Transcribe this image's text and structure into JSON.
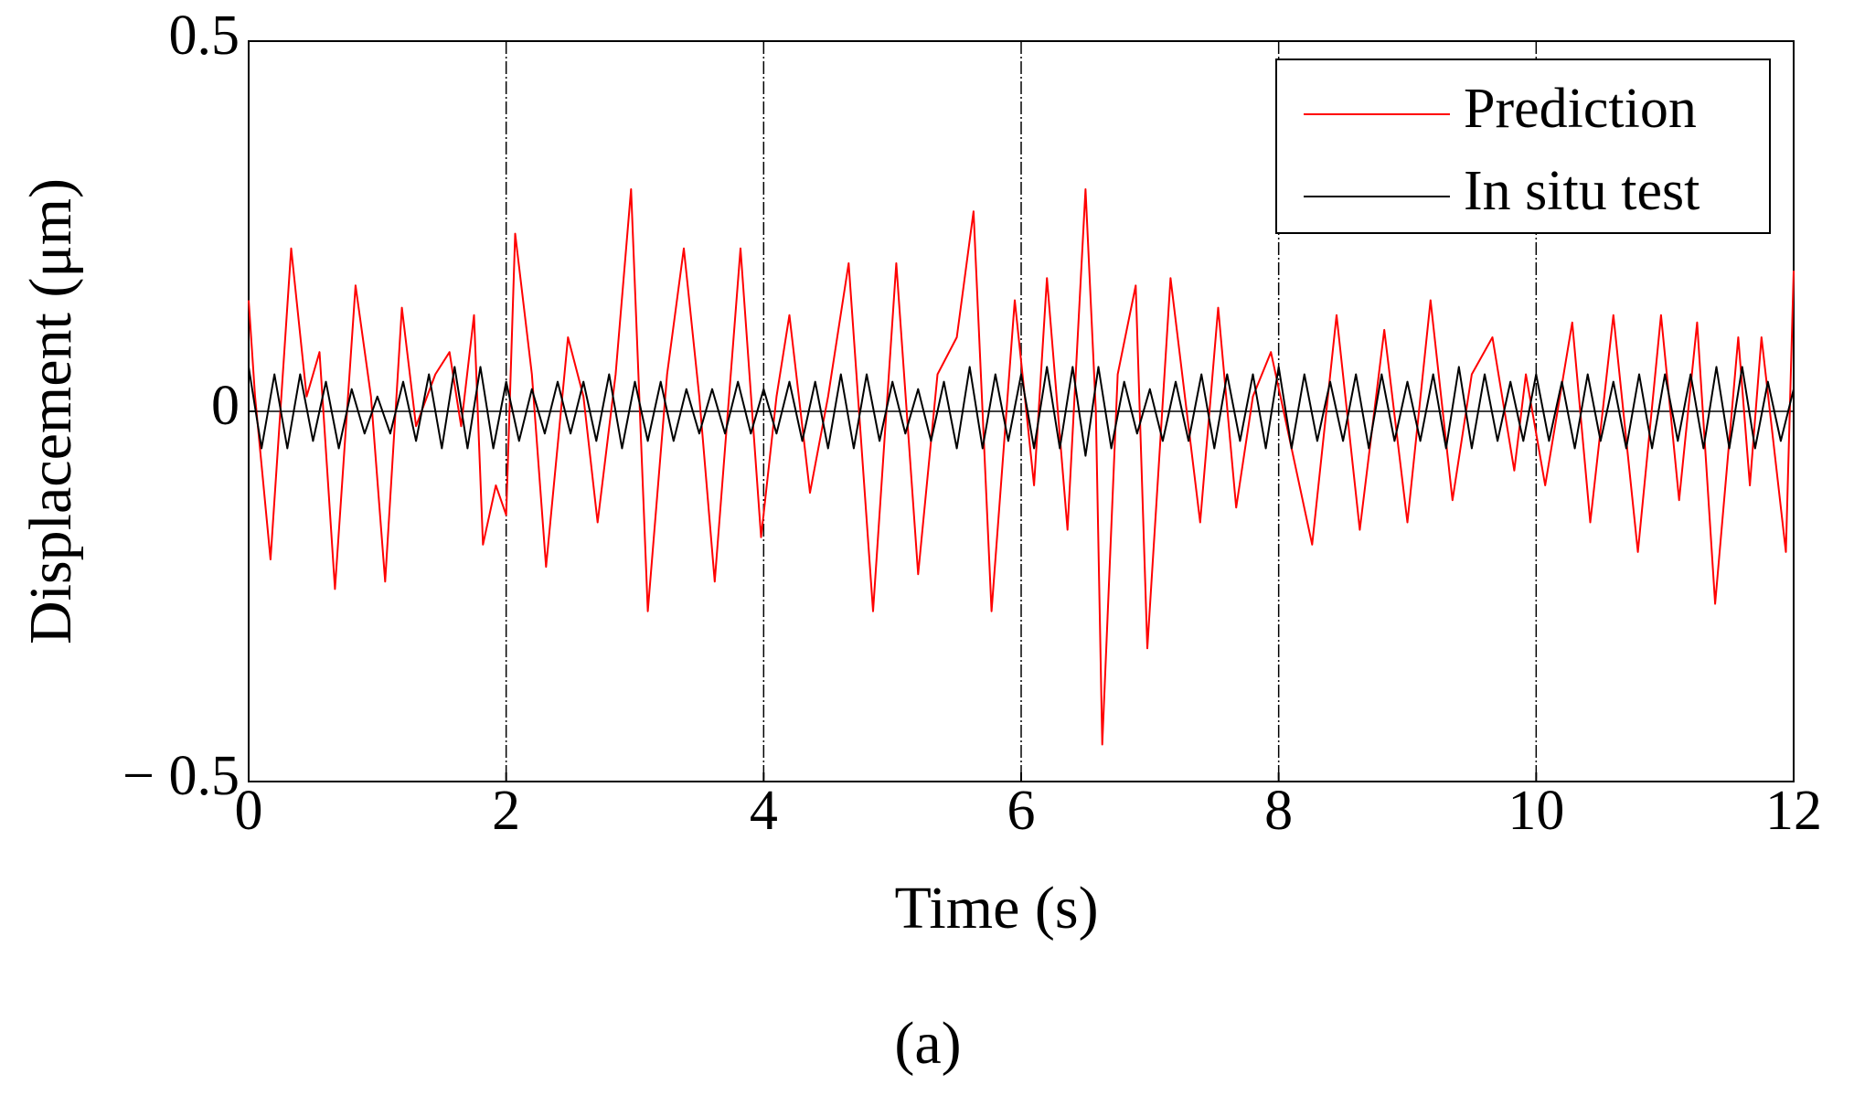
{
  "chart_data": {
    "type": "line",
    "caption": "(a)",
    "xlabel": "Time (s)",
    "ylabel": "Displacement (μm)",
    "xlim": [
      0,
      12
    ],
    "xticks": [
      0,
      2,
      4,
      6,
      8,
      10,
      12
    ],
    "ylim": [
      -0.5,
      0.5
    ],
    "yticks": [
      {
        "value": -0.5,
        "label": "− 0.5"
      },
      0,
      0.5
    ],
    "grid": "x",
    "legend": "upper right",
    "series": [
      {
        "name": "Prediction",
        "color": "#ff0000",
        "x": [
          0,
          0.05,
          0.17,
          0.33,
          0.45,
          0.55,
          0.67,
          0.83,
          0.95,
          1.06,
          1.19,
          1.3,
          1.45,
          1.56,
          1.65,
          1.75,
          1.82,
          1.92,
          2.0,
          2.07,
          2.2,
          2.31,
          2.48,
          2.6,
          2.71,
          2.85,
          2.97,
          3.1,
          3.25,
          3.38,
          3.5,
          3.62,
          3.82,
          3.98,
          4.1,
          4.2,
          4.36,
          4.5,
          4.66,
          4.85,
          5.03,
          5.2,
          5.35,
          5.5,
          5.63,
          5.77,
          5.95,
          6.1,
          6.2,
          6.36,
          6.5,
          6.58,
          6.63,
          6.75,
          6.89,
          6.98,
          7.16,
          7.39,
          7.53,
          7.67,
          7.8,
          7.94,
          8.1,
          8.26,
          8.45,
          8.63,
          8.82,
          9.0,
          9.18,
          9.35,
          9.5,
          9.66,
          9.83,
          9.92,
          10.07,
          10.28,
          10.42,
          10.6,
          10.79,
          10.97,
          11.11,
          11.25,
          11.39,
          11.57,
          11.66,
          11.75,
          11.94,
          12
        ],
        "values": [
          0.15,
          0.02,
          -0.2,
          0.22,
          0.02,
          0.08,
          -0.24,
          0.17,
          0.02,
          -0.23,
          0.14,
          -0.02,
          0.05,
          0.08,
          -0.02,
          0.13,
          -0.18,
          -0.1,
          -0.14,
          0.24,
          0.05,
          -0.21,
          0.1,
          0.02,
          -0.15,
          0.05,
          0.3,
          -0.27,
          0.05,
          0.22,
          0.02,
          -0.23,
          0.22,
          -0.17,
          0.02,
          0.13,
          -0.11,
          0.02,
          0.2,
          -0.27,
          0.2,
          -0.22,
          0.05,
          0.1,
          0.27,
          -0.27,
          0.15,
          -0.1,
          0.18,
          -0.16,
          0.3,
          0.0,
          -0.45,
          0.05,
          0.17,
          -0.32,
          0.18,
          -0.15,
          0.14,
          -0.13,
          0.02,
          0.08,
          -0.05,
          -0.18,
          0.13,
          -0.16,
          0.11,
          -0.15,
          0.15,
          -0.12,
          0.05,
          0.1,
          -0.08,
          0.05,
          -0.1,
          0.12,
          -0.15,
          0.13,
          -0.19,
          0.13,
          -0.12,
          0.12,
          -0.26,
          0.1,
          -0.1,
          0.1,
          -0.19,
          0.19
        ]
      },
      {
        "name": "In situ test",
        "color": "#000000",
        "x": [
          0,
          0.1,
          0.2,
          0.3,
          0.4,
          0.5,
          0.6,
          0.7,
          0.8,
          0.9,
          1,
          1.1,
          1.2,
          1.3,
          1.4,
          1.5,
          1.6,
          1.7,
          1.8,
          1.9,
          2,
          2.1,
          2.2,
          2.3,
          2.4,
          2.5,
          2.6,
          2.7,
          2.8,
          2.9,
          3,
          3.1,
          3.2,
          3.3,
          3.4,
          3.5,
          3.6,
          3.7,
          3.8,
          3.9,
          4,
          4.1,
          4.2,
          4.3,
          4.4,
          4.5,
          4.6,
          4.7,
          4.8,
          4.9,
          5,
          5.1,
          5.2,
          5.3,
          5.4,
          5.5,
          5.6,
          5.7,
          5.8,
          5.9,
          6,
          6.1,
          6.2,
          6.3,
          6.4,
          6.5,
          6.6,
          6.7,
          6.8,
          6.9,
          7,
          7.1,
          7.2,
          7.3,
          7.4,
          7.5,
          7.6,
          7.7,
          7.8,
          7.9,
          8,
          8.1,
          8.2,
          8.3,
          8.4,
          8.5,
          8.6,
          8.7,
          8.8,
          8.9,
          9,
          9.1,
          9.2,
          9.3,
          9.4,
          9.5,
          9.6,
          9.7,
          9.8,
          9.9,
          10,
          10.1,
          10.2,
          10.3,
          10.4,
          10.5,
          10.6,
          10.7,
          10.8,
          10.9,
          11,
          11.1,
          11.2,
          11.3,
          11.4,
          11.5,
          11.6,
          11.7,
          11.8,
          11.9,
          12
        ],
        "values": [
          0.06,
          -0.05,
          0.05,
          -0.05,
          0.05,
          -0.04,
          0.04,
          -0.05,
          0.03,
          -0.03,
          0.02,
          -0.03,
          0.04,
          -0.04,
          0.05,
          -0.05,
          0.06,
          -0.05,
          0.06,
          -0.05,
          0.04,
          -0.04,
          0.03,
          -0.03,
          0.04,
          -0.03,
          0.04,
          -0.04,
          0.05,
          -0.05,
          0.04,
          -0.04,
          0.04,
          -0.04,
          0.03,
          -0.03,
          0.03,
          -0.03,
          0.04,
          -0.03,
          0.03,
          -0.03,
          0.04,
          -0.04,
          0.04,
          -0.05,
          0.05,
          -0.05,
          0.05,
          -0.04,
          0.04,
          -0.03,
          0.03,
          -0.04,
          0.04,
          -0.05,
          0.06,
          -0.05,
          0.05,
          -0.04,
          0.05,
          -0.05,
          0.06,
          -0.05,
          0.06,
          -0.06,
          0.06,
          -0.05,
          0.04,
          -0.03,
          0.03,
          -0.04,
          0.04,
          -0.04,
          0.05,
          -0.05,
          0.05,
          -0.04,
          0.05,
          -0.05,
          0.06,
          -0.05,
          0.05,
          -0.04,
          0.04,
          -0.04,
          0.05,
          -0.05,
          0.05,
          -0.04,
          0.04,
          -0.04,
          0.05,
          -0.05,
          0.06,
          -0.05,
          0.05,
          -0.04,
          0.04,
          -0.04,
          0.05,
          -0.04,
          0.04,
          -0.05,
          0.05,
          -0.04,
          0.04,
          -0.05,
          0.05,
          -0.05,
          0.05,
          -0.04,
          0.05,
          -0.05,
          0.06,
          -0.05,
          0.06,
          -0.05,
          0.04,
          -0.04,
          0.03
        ]
      }
    ]
  }
}
